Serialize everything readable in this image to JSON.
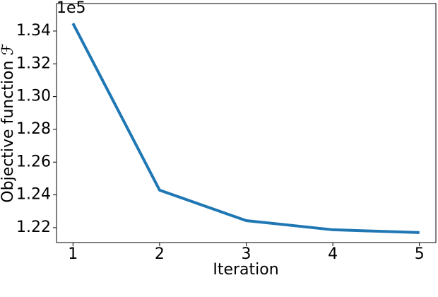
{
  "chart_data": {
    "type": "line",
    "xlabel": "Iteration",
    "ylabel": "Objective function ℱ",
    "y_offset_label": "1e5",
    "x": [
      1,
      2,
      3,
      4,
      5
    ],
    "series": [
      {
        "color": "#1f77b4",
        "values": [
          134470,
          124290,
          122430,
          121870,
          121700
        ]
      }
    ],
    "xlim": [
      0.81,
      5.19
    ],
    "xticks": [
      1,
      2,
      3,
      4,
      5
    ],
    "ylim": [
      121090,
      135680
    ],
    "yticks": [
      {
        "value": 122000,
        "label": "1.22"
      },
      {
        "value": 124000,
        "label": "1.24"
      },
      {
        "value": 126000,
        "label": "1.26"
      },
      {
        "value": 128000,
        "label": "1.28"
      },
      {
        "value": 130000,
        "label": "1.30"
      },
      {
        "value": 132000,
        "label": "1.32"
      },
      {
        "value": 134000,
        "label": "1.34"
      }
    ],
    "grid": false
  }
}
